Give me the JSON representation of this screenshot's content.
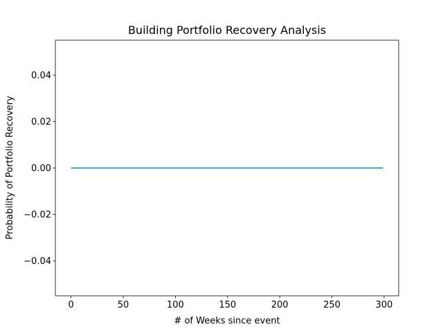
{
  "chart_data": {
    "type": "line",
    "title": "Building Portfolio Recovery Analysis",
    "xlabel": "# of Weeks since event",
    "ylabel": "Probability of Portfolio Recovery",
    "xlim": [
      -15,
      314
    ],
    "ylim": [
      -0.055,
      0.055
    ],
    "xticks": [
      0,
      50,
      100,
      150,
      200,
      250,
      300
    ],
    "yticks": [
      -0.04,
      -0.02,
      0.0,
      0.02,
      0.04
    ],
    "xtick_labels": [
      "0",
      "50",
      "100",
      "150",
      "200",
      "250",
      "300"
    ],
    "ytick_labels": [
      "−0.04",
      "−0.02",
      "0.00",
      "0.02",
      "0.04"
    ],
    "grid": false,
    "series": [
      {
        "color": "#1f77b4",
        "x": [
          0,
          299
        ],
        "y": [
          0,
          0
        ]
      }
    ]
  }
}
